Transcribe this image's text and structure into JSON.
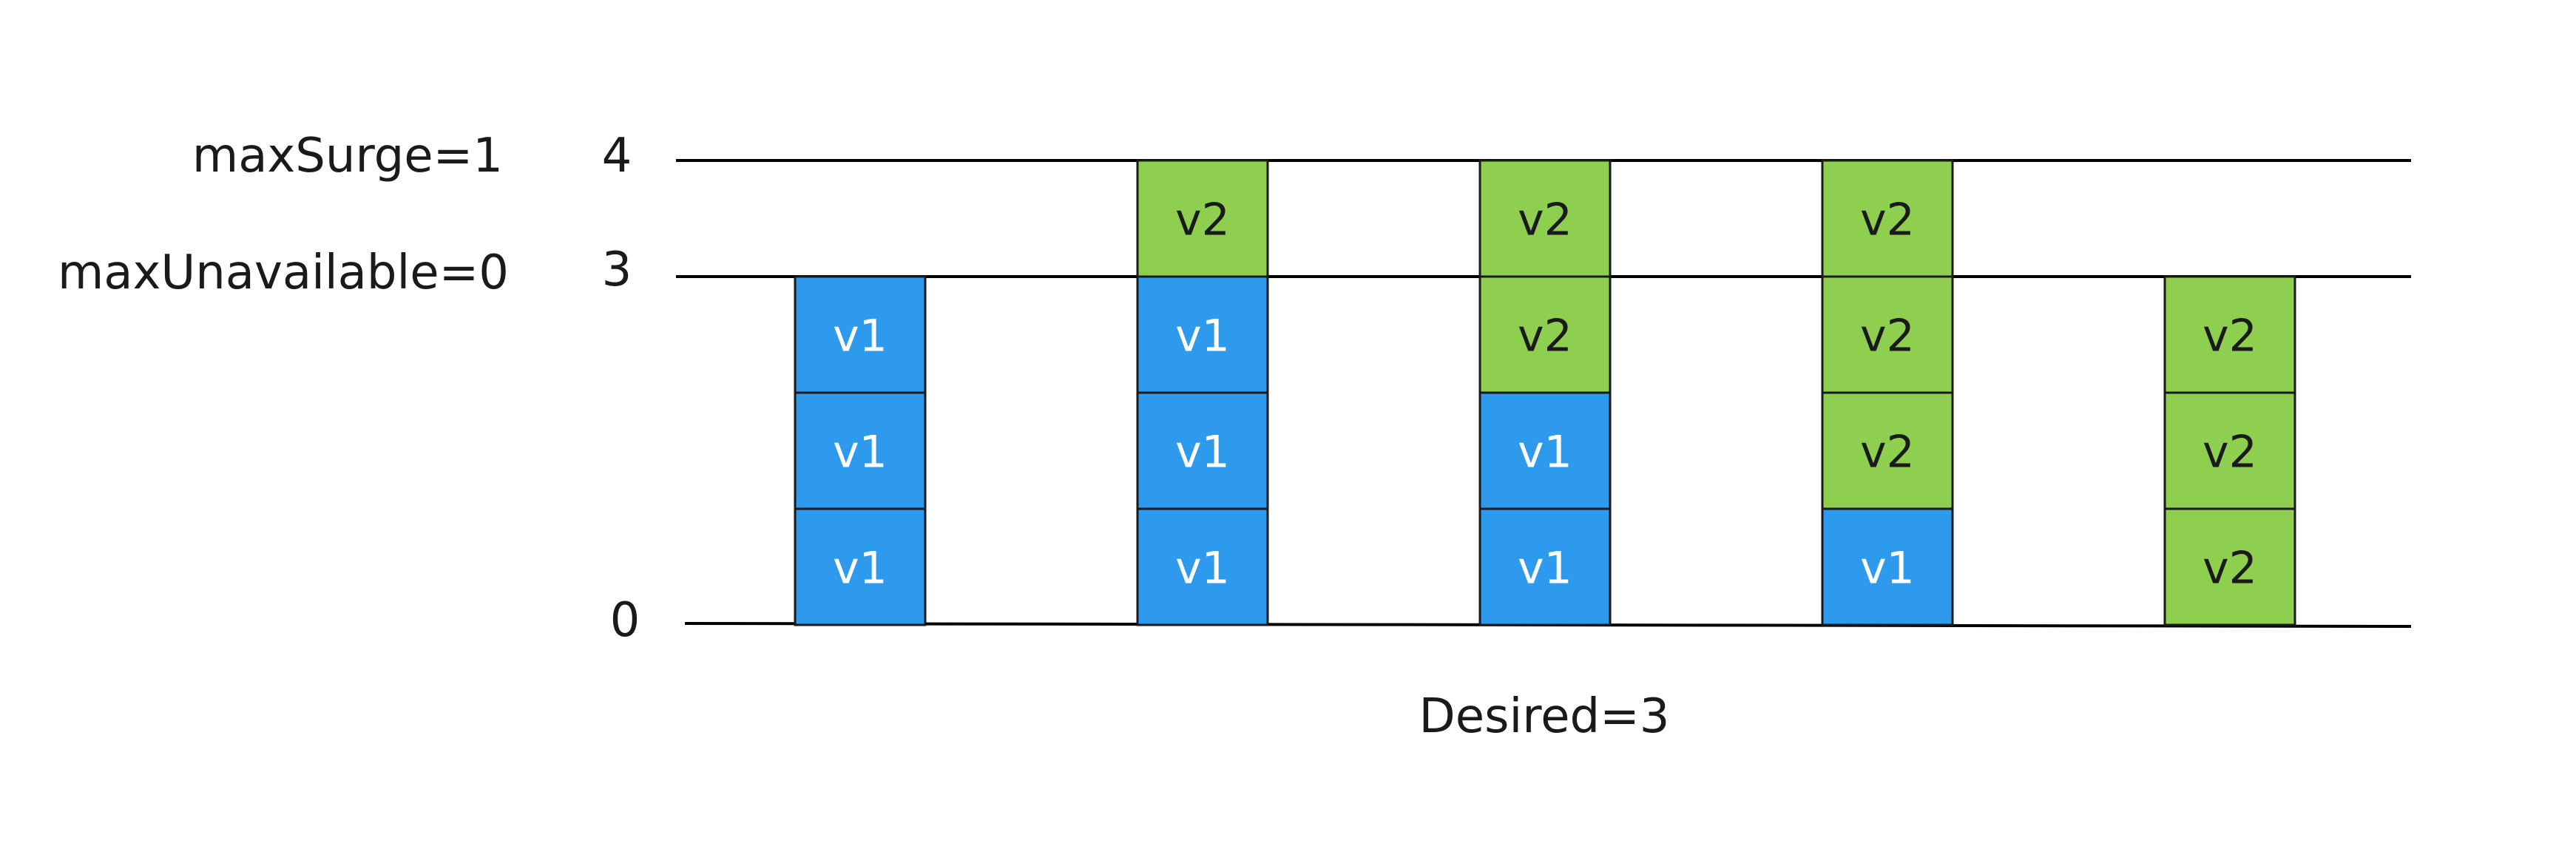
{
  "labels": {
    "max_surge": "maxSurge=1",
    "max_unavailable": "maxUnavailable=0",
    "desired": "Desired=3"
  },
  "axis": {
    "ticks": [
      "4",
      "3",
      "0"
    ]
  },
  "colors": {
    "v1": "#2e9aee",
    "v2": "#8ecf4f",
    "line": "#000000",
    "text": "#1a1a1a",
    "pod_text": "#ffffff"
  },
  "stages": [
    {
      "pods": [
        "v1",
        "v1",
        "v1"
      ]
    },
    {
      "pods": [
        "v1",
        "v1",
        "v1",
        "v2"
      ]
    },
    {
      "pods": [
        "v1",
        "v1",
        "v2",
        "v2"
      ]
    },
    {
      "pods": [
        "v1",
        "v2",
        "v2",
        "v2"
      ]
    },
    {
      "pods": [
        "v2",
        "v2",
        "v2"
      ]
    }
  ]
}
